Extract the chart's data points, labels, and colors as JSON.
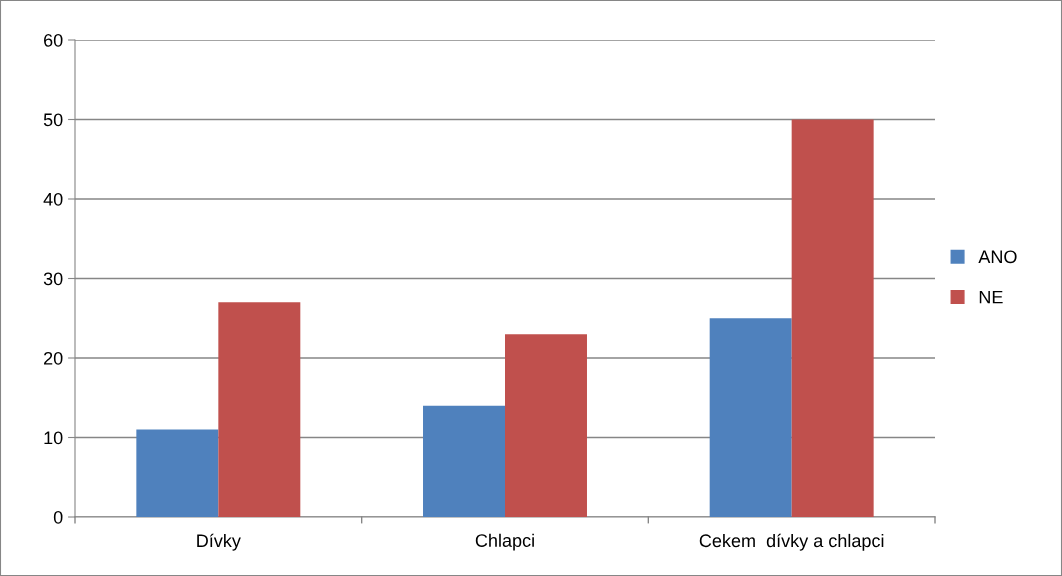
{
  "chart_data": {
    "type": "bar",
    "categories": [
      "Dívky",
      "Chlapci",
      "Cekem  dívky a chlapci"
    ],
    "series": [
      {
        "name": "ANO",
        "color": "#4f81bd",
        "values": [
          11,
          14,
          25
        ]
      },
      {
        "name": "NE",
        "color": "#c0504d",
        "values": [
          27,
          23,
          50
        ]
      }
    ],
    "ylim": [
      0,
      60
    ],
    "yticks": [
      0,
      10,
      20,
      30,
      40,
      50,
      60
    ],
    "grid": "y",
    "legend": "right"
  }
}
